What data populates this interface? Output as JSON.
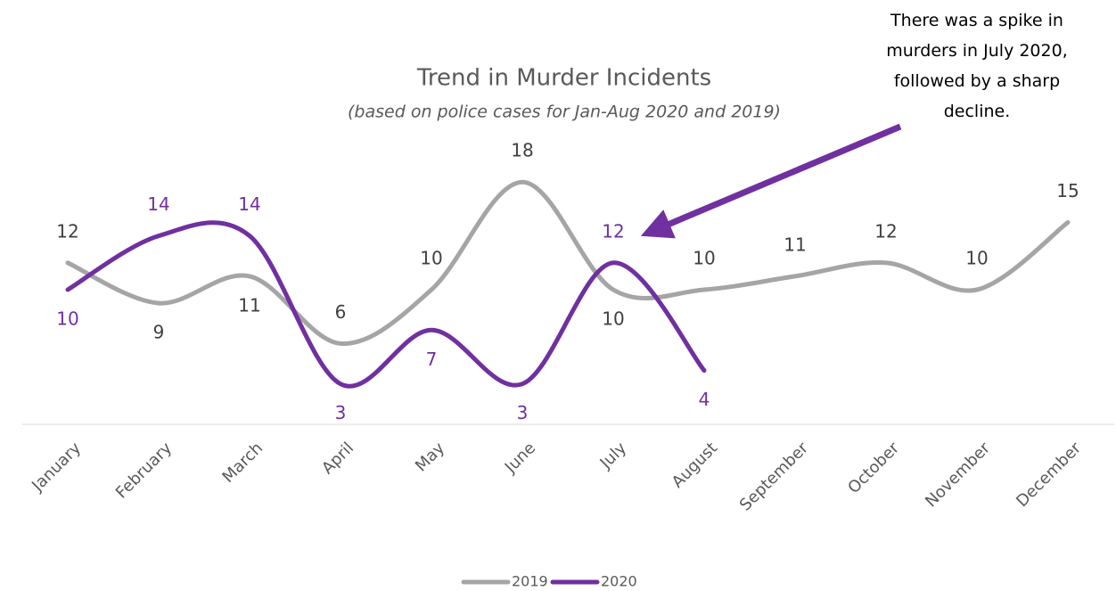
{
  "chart_data": {
    "type": "line",
    "title": "Trend in Murder Incidents",
    "subtitle": "(based on police cases for Jan-Aug 2020 and 2019)",
    "annotation": "There was a spike in murders in July 2020, followed by a sharp decline.",
    "categories": [
      "January",
      "February",
      "March",
      "April",
      "May",
      "June",
      "July",
      "August",
      "September",
      "October",
      "November",
      "December"
    ],
    "series": [
      {
        "name": "2019",
        "color": "#a5a5a5",
        "values": [
          12,
          9,
          11,
          6,
          10,
          18,
          10,
          10,
          11,
          12,
          10,
          15
        ]
      },
      {
        "name": "2020",
        "color": "#7030a0",
        "values": [
          10,
          14,
          14,
          3,
          7,
          3,
          12,
          4,
          null,
          null,
          null,
          null
        ]
      }
    ],
    "ylim": [
      0,
      30
    ],
    "legend": "bottom"
  }
}
